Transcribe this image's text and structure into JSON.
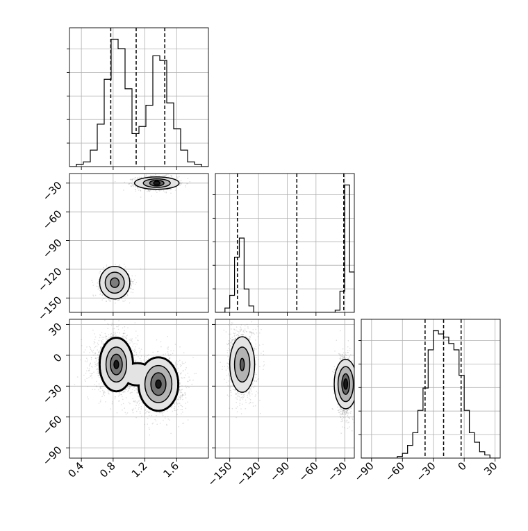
{
  "chart_data": {
    "type": "corner",
    "grid": true,
    "scatter_color": "#888888",
    "line_color": "#000000",
    "parameters": [
      {
        "index": 0,
        "range": [
          0.25,
          2.0
        ],
        "ticks": [
          0.4,
          0.8,
          1.2,
          1.6
        ],
        "tick_labels": [
          "0.4",
          "0.8",
          "1.2",
          "1.6"
        ]
      },
      {
        "index": 1,
        "range": [
          -165,
          -20
        ],
        "ticks": [
          -150,
          -120,
          -90,
          -60,
          -30
        ],
        "tick_labels": [
          "−150",
          "−120",
          "−90",
          "−60",
          "−30"
        ]
      },
      {
        "index": 2,
        "range": [
          -100,
          35
        ],
        "ticks": [
          -90,
          -60,
          -30,
          0,
          30
        ],
        "tick_labels": [
          "−90",
          "−60",
          "−30",
          "0",
          "30"
        ]
      }
    ],
    "histograms": [
      {
        "param": 0,
        "bin_edges": [
          0.25,
          0.3375,
          0.425,
          0.5125,
          0.6,
          0.6875,
          0.775,
          0.8625,
          0.95,
          1.0375,
          1.125,
          1.2125,
          1.3,
          1.3875,
          1.475,
          1.5625,
          1.65,
          1.7375,
          1.825,
          1.9125,
          2.0
        ],
        "counts": [
          0,
          1,
          2,
          7,
          18,
          37,
          54,
          50,
          33,
          14,
          17,
          26,
          47,
          45,
          27,
          16,
          7,
          2,
          1,
          0
        ],
        "quantiles": [
          0.77,
          1.09,
          1.45
        ]
      },
      {
        "param": 1,
        "bin_edges": [
          -165,
          -160,
          -155,
          -150,
          -145,
          -140,
          -135,
          -130,
          -125,
          -120,
          -115,
          -110,
          -105,
          -100,
          -95,
          -90,
          -85,
          -80,
          -75,
          -70,
          -65,
          -60,
          -55,
          -50,
          -45,
          -40,
          -35,
          -30,
          -25,
          -20
        ],
        "counts": [
          0,
          0,
          2,
          8,
          26,
          35,
          11,
          3,
          0,
          0,
          0,
          0,
          0,
          0,
          0,
          0,
          0,
          0,
          0,
          0,
          0,
          0,
          0,
          0,
          0,
          1,
          10,
          60,
          19
        ],
        "quantiles": [
          -142,
          -80,
          -31
        ]
      },
      {
        "param": 2,
        "bin_edges": [
          -100,
          -95,
          -90,
          -85,
          -80,
          -75,
          -70,
          -65,
          -60,
          -55,
          -50,
          -45,
          -40,
          -35,
          -30,
          -25,
          -20,
          -15,
          -10,
          -5,
          0,
          5,
          10,
          15,
          20,
          25,
          30,
          35
        ],
        "counts": [
          0,
          0,
          0,
          0,
          0,
          0,
          0,
          0.5,
          1.5,
          4,
          8,
          15,
          22,
          34,
          40,
          39,
          38,
          36,
          34,
          26,
          15,
          8,
          5,
          2,
          1,
          0,
          0
        ],
        "quantiles": [
          -38,
          -20,
          -3
        ]
      }
    ],
    "joint_panels": [
      {
        "x_param": 0,
        "y_param": 1,
        "clusters": [
          {
            "center": [
              1.35,
              -30
            ],
            "spread": [
              0.13,
              3.5
            ],
            "n": 1300
          },
          {
            "center": [
              0.82,
              -135
            ],
            "spread": [
              0.09,
              7
            ],
            "n": 1300
          }
        ],
        "contours": [
          {
            "center": [
              1.35,
              -30
            ],
            "radii": [
              [
                0.28,
                6.5
              ],
              [
                0.17,
                4.5
              ],
              [
                0.09,
                3.0
              ],
              [
                0.04,
                2.0
              ]
            ],
            "fill": [
              0.08,
              0.3,
              0.65,
              1.0
            ]
          },
          {
            "center": [
              0.82,
              -134
            ],
            "radii": [
              [
                0.19,
                17
              ],
              [
                0.12,
                11
              ],
              [
                0.055,
                5
              ]
            ],
            "fill": [
              0.08,
              0.25,
              0.55
            ]
          }
        ]
      },
      {
        "x_param": 0,
        "y_param": 2,
        "clusters": [
          {
            "center": [
              0.82,
              -8
            ],
            "spread": [
              0.14,
              14
            ],
            "n": 1500
          },
          {
            "center": [
              1.37,
              -28
            ],
            "spread": [
              0.16,
              14
            ],
            "n": 1500
          }
        ],
        "contour_lobes": [
          {
            "center": [
              0.84,
              -9
            ],
            "radii": [
              [
                0.21,
                26
              ],
              [
                0.13,
                17
              ],
              [
                0.075,
                10
              ],
              [
                0.03,
                4
              ]
            ],
            "fill": [
              0.08,
              0.3,
              0.6,
              1.0
            ]
          },
          {
            "center": [
              1.37,
              -28
            ],
            "radii": [
              [
                0.25,
                26
              ],
              [
                0.17,
                18
              ],
              [
                0.095,
                11
              ],
              [
                0.035,
                4
              ]
            ],
            "fill": [
              0.08,
              0.3,
              0.6,
              1.0
            ]
          }
        ]
      },
      {
        "x_param": 1,
        "y_param": 2,
        "clusters": [
          {
            "center": [
              -137,
              -8
            ],
            "spread": [
              7,
              17
            ],
            "n": 1400
          },
          {
            "center": [
              -30,
              -30
            ],
            "spread": [
              4,
              14
            ],
            "n": 1400
          }
        ],
        "contours": [
          {
            "center": [
              -137,
              -9
            ],
            "radii": [
              [
                13,
                27
              ],
              [
                8,
                17
              ],
              [
                2.2,
                6
              ]
            ],
            "fill": [
              0.08,
              0.3,
              0.7
            ]
          },
          {
            "center": [
              -29,
              -28
            ],
            "radii": [
              [
                12,
                24
              ],
              [
                8,
                17
              ],
              [
                4,
                10
              ],
              [
                2,
                5
              ]
            ],
            "fill": [
              0.08,
              0.3,
              0.65,
              1.0
            ]
          }
        ]
      }
    ]
  }
}
